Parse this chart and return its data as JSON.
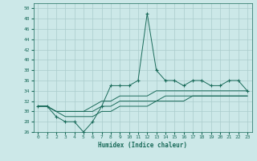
{
  "xlabel": "Humidex (Indice chaleur)",
  "bg_color": "#cce8e8",
  "grid_color": "#aacccc",
  "line_color": "#1a6b5a",
  "xlim": [
    -0.5,
    23.5
  ],
  "ylim": [
    26,
    51
  ],
  "yticks": [
    26,
    28,
    30,
    32,
    34,
    36,
    38,
    40,
    42,
    44,
    46,
    48,
    50
  ],
  "xticks": [
    0,
    1,
    2,
    3,
    4,
    5,
    6,
    7,
    8,
    9,
    10,
    11,
    12,
    13,
    14,
    15,
    16,
    17,
    18,
    19,
    20,
    21,
    22,
    23
  ],
  "line1": [
    31,
    31,
    29,
    28,
    28,
    26,
    28,
    31,
    35,
    35,
    35,
    36,
    49,
    38,
    36,
    36,
    35,
    36,
    36,
    35,
    35,
    36,
    36,
    34
  ],
  "line2": [
    31,
    31,
    30,
    30,
    30,
    30,
    31,
    32,
    32,
    33,
    33,
    33,
    33,
    34,
    34,
    34,
    34,
    34,
    34,
    34,
    34,
    34,
    34,
    34
  ],
  "line3": [
    31,
    31,
    30,
    30,
    30,
    30,
    30,
    31,
    31,
    32,
    32,
    32,
    32,
    32,
    33,
    33,
    33,
    33,
    33,
    33,
    33,
    33,
    33,
    33
  ],
  "line4": [
    31,
    31,
    30,
    29,
    29,
    29,
    29,
    30,
    30,
    31,
    31,
    31,
    31,
    32,
    32,
    32,
    32,
    33,
    33,
    33,
    33,
    33,
    33,
    33
  ]
}
